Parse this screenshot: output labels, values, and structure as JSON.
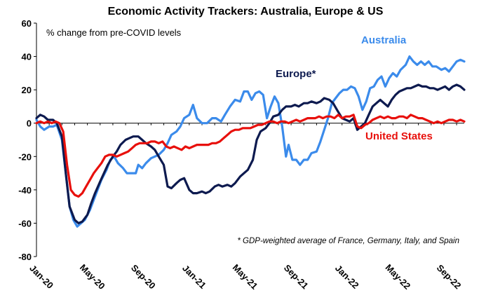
{
  "chart_data": {
    "type": "line",
    "title": "Economic Activity Trackers: Australia, Europe & US",
    "subtitle": "% change from pre-COVID levels",
    "footnote": "* GDP-weighted average of France, Germany, Italy, and Spain",
    "ylim": [
      -80,
      60
    ],
    "yticks": [
      60,
      40,
      20,
      0,
      -20,
      -40,
      -60,
      -80
    ],
    "x_range": [
      "2020-01",
      "2022-09"
    ],
    "x_tick_labels": [
      "Jan-20",
      "May-20",
      "Sep-20",
      "Jan-21",
      "May-21",
      "Sep-21",
      "Jan-22",
      "May-22",
      "Sep-22"
    ],
    "x_tick_months": [
      0,
      4,
      8,
      12,
      16,
      20,
      24,
      28,
      32
    ],
    "grid": false,
    "series": [
      {
        "name": "Australia",
        "color": "#3B8BEB",
        "points": [
          [
            0,
            2
          ],
          [
            0.3,
            -2
          ],
          [
            0.6,
            -4
          ],
          [
            1,
            -2
          ],
          [
            1.3,
            -2
          ],
          [
            1.6,
            -1
          ],
          [
            2,
            -10
          ],
          [
            2.3,
            -30
          ],
          [
            2.6,
            -50
          ],
          [
            2.9,
            -58
          ],
          [
            3.2,
            -62
          ],
          [
            3.5,
            -60
          ],
          [
            3.8,
            -58
          ],
          [
            4.2,
            -52
          ],
          [
            4.5,
            -46
          ],
          [
            4.8,
            -40
          ],
          [
            5.1,
            -34
          ],
          [
            5.5,
            -28
          ],
          [
            5.8,
            -22
          ],
          [
            6.1,
            -20
          ],
          [
            6.4,
            -24
          ],
          [
            6.8,
            -27
          ],
          [
            7.1,
            -30
          ],
          [
            7.4,
            -30
          ],
          [
            7.8,
            -30
          ],
          [
            8,
            -25
          ],
          [
            8.3,
            -27
          ],
          [
            8.6,
            -24
          ],
          [
            9,
            -21
          ],
          [
            9.3,
            -20
          ],
          [
            9.6,
            -19
          ],
          [
            10,
            -16
          ],
          [
            10.3,
            -12
          ],
          [
            10.6,
            -7
          ],
          [
            11,
            -5
          ],
          [
            11.3,
            -2
          ],
          [
            11.6,
            3
          ],
          [
            12,
            5
          ],
          [
            12.3,
            11
          ],
          [
            12.6,
            3
          ],
          [
            13,
            0
          ],
          [
            13.4,
            0
          ],
          [
            13.8,
            3
          ],
          [
            14.1,
            3
          ],
          [
            14.5,
            1
          ],
          [
            14.8,
            5
          ],
          [
            15.2,
            10
          ],
          [
            15.6,
            14
          ],
          [
            16,
            13
          ],
          [
            16.3,
            19
          ],
          [
            16.6,
            19
          ],
          [
            16.9,
            14
          ],
          [
            17.2,
            18
          ],
          [
            17.5,
            19
          ],
          [
            17.8,
            17
          ],
          [
            18.1,
            3
          ],
          [
            18.4,
            10
          ],
          [
            18.7,
            16
          ],
          [
            19,
            12
          ],
          [
            19.3,
            -2
          ],
          [
            19.6,
            -20
          ],
          [
            19.8,
            -13
          ],
          [
            20.1,
            -22
          ],
          [
            20.4,
            -22
          ],
          [
            20.7,
            -25
          ],
          [
            21,
            -22
          ],
          [
            21.3,
            -22
          ],
          [
            21.6,
            -18
          ],
          [
            22,
            -17
          ],
          [
            22.3,
            -11
          ],
          [
            22.6,
            -4
          ],
          [
            22.9,
            3
          ],
          [
            23.2,
            12
          ],
          [
            23.5,
            15
          ],
          [
            23.8,
            18
          ],
          [
            24.1,
            20
          ],
          [
            24.4,
            20
          ],
          [
            24.7,
            22
          ],
          [
            25,
            21
          ],
          [
            25.3,
            16
          ],
          [
            25.6,
            8
          ],
          [
            25.9,
            13
          ],
          [
            26.2,
            21
          ],
          [
            26.5,
            22
          ],
          [
            26.8,
            26
          ],
          [
            27.1,
            28
          ],
          [
            27.4,
            22
          ],
          [
            27.7,
            27
          ],
          [
            28,
            30
          ],
          [
            28.3,
            28
          ],
          [
            28.6,
            32
          ],
          [
            29,
            35
          ],
          [
            29.3,
            40
          ],
          [
            29.6,
            37
          ],
          [
            29.9,
            35
          ],
          [
            30.2,
            37
          ],
          [
            30.5,
            35
          ],
          [
            30.8,
            37
          ],
          [
            31.1,
            34
          ],
          [
            31.4,
            34
          ],
          [
            31.8,
            32
          ],
          [
            32.1,
            33
          ],
          [
            32.4,
            31
          ],
          [
            32.7,
            34
          ],
          [
            33,
            37
          ],
          [
            33.3,
            38
          ],
          [
            33.6,
            37
          ]
        ]
      },
      {
        "name": "Europe*",
        "color": "#0D1A4F",
        "points": [
          [
            0,
            3
          ],
          [
            0.3,
            5
          ],
          [
            0.6,
            4
          ],
          [
            0.9,
            2
          ],
          [
            1.3,
            2
          ],
          [
            1.6,
            0
          ],
          [
            2,
            -8
          ],
          [
            2.3,
            -30
          ],
          [
            2.6,
            -50
          ],
          [
            3,
            -58
          ],
          [
            3.3,
            -60
          ],
          [
            3.6,
            -59
          ],
          [
            4,
            -55
          ],
          [
            4.3,
            -48
          ],
          [
            4.6,
            -42
          ],
          [
            5,
            -35
          ],
          [
            5.3,
            -30
          ],
          [
            5.6,
            -25
          ],
          [
            6,
            -20
          ],
          [
            6.3,
            -17
          ],
          [
            6.6,
            -13
          ],
          [
            7,
            -10
          ],
          [
            7.3,
            -9
          ],
          [
            7.6,
            -8
          ],
          [
            8,
            -8
          ],
          [
            8.3,
            -10
          ],
          [
            8.6,
            -12
          ],
          [
            9,
            -14
          ],
          [
            9.3,
            -16
          ],
          [
            9.6,
            -20
          ],
          [
            10,
            -25
          ],
          [
            10.3,
            -38
          ],
          [
            10.6,
            -39
          ],
          [
            11,
            -36
          ],
          [
            11.3,
            -34
          ],
          [
            11.6,
            -33
          ],
          [
            12,
            -40
          ],
          [
            12.3,
            -42
          ],
          [
            12.6,
            -42
          ],
          [
            13,
            -41
          ],
          [
            13.3,
            -42
          ],
          [
            13.6,
            -41
          ],
          [
            14,
            -38
          ],
          [
            14.3,
            -37
          ],
          [
            14.6,
            -38
          ],
          [
            15,
            -37
          ],
          [
            15.3,
            -38
          ],
          [
            15.6,
            -36
          ],
          [
            16,
            -32
          ],
          [
            16.3,
            -30
          ],
          [
            16.6,
            -28
          ],
          [
            17,
            -22
          ],
          [
            17.3,
            -10
          ],
          [
            17.6,
            -5
          ],
          [
            18,
            -3
          ],
          [
            18.3,
            0
          ],
          [
            18.6,
            4
          ],
          [
            19,
            5
          ],
          [
            19.3,
            8
          ],
          [
            19.6,
            10
          ],
          [
            20,
            10
          ],
          [
            20.3,
            11
          ],
          [
            20.6,
            10
          ],
          [
            21,
            12
          ],
          [
            21.3,
            12
          ],
          [
            21.6,
            13
          ],
          [
            22,
            12
          ],
          [
            22.3,
            13
          ],
          [
            22.6,
            15
          ],
          [
            23,
            14
          ],
          [
            23.3,
            12
          ],
          [
            23.6,
            8
          ],
          [
            24,
            3
          ],
          [
            24.3,
            2
          ],
          [
            24.6,
            1
          ],
          [
            24.9,
            3
          ],
          [
            25.2,
            -4
          ],
          [
            25.5,
            -2
          ],
          [
            25.8,
            0
          ],
          [
            26.1,
            5
          ],
          [
            26.4,
            10
          ],
          [
            26.7,
            12
          ],
          [
            27,
            14
          ],
          [
            27.3,
            12
          ],
          [
            27.6,
            10
          ],
          [
            27.9,
            14
          ],
          [
            28.2,
            17
          ],
          [
            28.5,
            19
          ],
          [
            28.8,
            20
          ],
          [
            29.1,
            21
          ],
          [
            29.4,
            21
          ],
          [
            29.7,
            22
          ],
          [
            30,
            23
          ],
          [
            30.3,
            22
          ],
          [
            30.6,
            22
          ],
          [
            30.9,
            21
          ],
          [
            31.2,
            21
          ],
          [
            31.5,
            20
          ],
          [
            31.8,
            21
          ],
          [
            32.1,
            22
          ],
          [
            32.4,
            20
          ],
          [
            32.7,
            22
          ],
          [
            33,
            23
          ],
          [
            33.3,
            22
          ],
          [
            33.6,
            20
          ]
        ]
      },
      {
        "name": "United States",
        "color": "#E8100C",
        "points": [
          [
            0,
            0
          ],
          [
            0.3,
            1
          ],
          [
            0.6,
            0
          ],
          [
            0.9,
            1
          ],
          [
            1.2,
            0
          ],
          [
            1.5,
            1
          ],
          [
            1.8,
            0
          ],
          [
            2.1,
            -5
          ],
          [
            2.4,
            -25
          ],
          [
            2.7,
            -40
          ],
          [
            3,
            -43
          ],
          [
            3.3,
            -44
          ],
          [
            3.6,
            -42
          ],
          [
            3.9,
            -38
          ],
          [
            4.2,
            -34
          ],
          [
            4.5,
            -30
          ],
          [
            4.8,
            -27
          ],
          [
            5.1,
            -24
          ],
          [
            5.4,
            -20
          ],
          [
            5.7,
            -19
          ],
          [
            6,
            -19
          ],
          [
            6.3,
            -20
          ],
          [
            6.6,
            -19
          ],
          [
            6.9,
            -18
          ],
          [
            7.2,
            -17
          ],
          [
            7.5,
            -15
          ],
          [
            7.8,
            -13
          ],
          [
            8.1,
            -12
          ],
          [
            8.4,
            -12
          ],
          [
            8.7,
            -12
          ],
          [
            9,
            -11
          ],
          [
            9.3,
            -11
          ],
          [
            9.6,
            -12
          ],
          [
            9.9,
            -11
          ],
          [
            10.2,
            -14
          ],
          [
            10.5,
            -15
          ],
          [
            10.8,
            -14
          ],
          [
            11.1,
            -15
          ],
          [
            11.4,
            -16
          ],
          [
            11.7,
            -14
          ],
          [
            12,
            -15
          ],
          [
            12.3,
            -14
          ],
          [
            12.6,
            -13
          ],
          [
            12.9,
            -13
          ],
          [
            13.2,
            -13
          ],
          [
            13.5,
            -13
          ],
          [
            13.8,
            -12
          ],
          [
            14.1,
            -12
          ],
          [
            14.4,
            -11
          ],
          [
            14.7,
            -9
          ],
          [
            15,
            -7
          ],
          [
            15.3,
            -5
          ],
          [
            15.6,
            -4
          ],
          [
            15.9,
            -4
          ],
          [
            16.2,
            -3
          ],
          [
            16.5,
            -3
          ],
          [
            16.8,
            -3
          ],
          [
            17.1,
            -2
          ],
          [
            17.4,
            -1
          ],
          [
            17.7,
            -1
          ],
          [
            18,
            0
          ],
          [
            18.3,
            1
          ],
          [
            18.6,
            1
          ],
          [
            18.9,
            0
          ],
          [
            19.2,
            1
          ],
          [
            19.5,
            1
          ],
          [
            19.8,
            0
          ],
          [
            20.1,
            1
          ],
          [
            20.4,
            2
          ],
          [
            20.7,
            1
          ],
          [
            21,
            2
          ],
          [
            21.3,
            3
          ],
          [
            21.6,
            3
          ],
          [
            21.9,
            3
          ],
          [
            22.2,
            4
          ],
          [
            22.5,
            3
          ],
          [
            22.8,
            4
          ],
          [
            23.1,
            4
          ],
          [
            23.4,
            3
          ],
          [
            23.7,
            5
          ],
          [
            24,
            3
          ],
          [
            24.3,
            4
          ],
          [
            24.6,
            4
          ],
          [
            24.9,
            5
          ],
          [
            25.2,
            -2
          ],
          [
            25.5,
            -3
          ],
          [
            25.8,
            -1
          ],
          [
            26.1,
            0
          ],
          [
            26.4,
            2
          ],
          [
            26.7,
            3
          ],
          [
            27,
            4
          ],
          [
            27.3,
            3
          ],
          [
            27.6,
            4
          ],
          [
            27.9,
            3
          ],
          [
            28.2,
            3
          ],
          [
            28.5,
            4
          ],
          [
            28.8,
            4
          ],
          [
            29.1,
            3
          ],
          [
            29.4,
            5
          ],
          [
            29.7,
            4
          ],
          [
            30,
            3
          ],
          [
            30.3,
            3
          ],
          [
            30.6,
            2
          ],
          [
            30.9,
            1
          ],
          [
            31.2,
            0
          ],
          [
            31.5,
            1
          ],
          [
            31.8,
            0
          ],
          [
            32.1,
            1
          ],
          [
            32.4,
            2
          ],
          [
            32.7,
            2
          ],
          [
            33,
            1
          ],
          [
            33.3,
            2
          ],
          [
            33.6,
            1
          ]
        ]
      }
    ]
  }
}
